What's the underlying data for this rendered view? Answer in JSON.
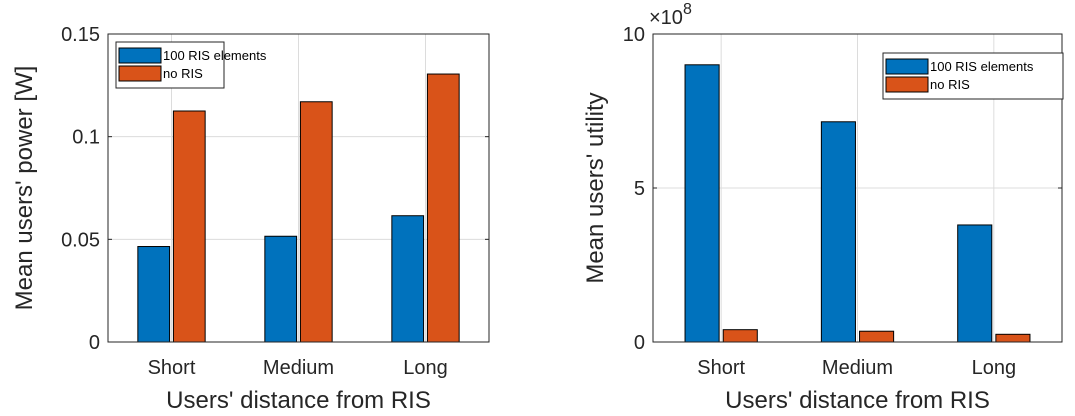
{
  "chart_data": [
    {
      "type": "bar",
      "categories": [
        "Short",
        "Medium",
        "Long"
      ],
      "series": [
        {
          "name": "100 RIS elements",
          "values": [
            0.0465,
            0.0515,
            0.0615
          ],
          "color": "#0072BD"
        },
        {
          "name": "no RIS",
          "values": [
            0.1125,
            0.117,
            0.1305
          ],
          "color": "#D95319"
        }
      ],
      "xlabel": "Users' distance from RIS",
      "ylabel": "Mean users' power [W]",
      "ylim": [
        0,
        0.15
      ],
      "yticks": [
        0,
        0.05,
        0.1,
        0.15
      ],
      "ytick_labels": [
        "0",
        "0.05",
        "0.1",
        "0.15"
      ],
      "grid": true,
      "legend_position": "top-left"
    },
    {
      "type": "bar",
      "categories": [
        "Short",
        "Medium",
        "Long"
      ],
      "series": [
        {
          "name": "100 RIS elements",
          "values": [
            900000000,
            715000000,
            380000000
          ],
          "color": "#0072BD"
        },
        {
          "name": "no RIS",
          "values": [
            40000000,
            35000000,
            25000000
          ],
          "color": "#D95319"
        }
      ],
      "xlabel": "Users' distance from RIS",
      "ylabel": "Mean users' utility",
      "ylim": [
        0,
        1000000000
      ],
      "yticks": [
        0,
        500000000,
        1000000000
      ],
      "ytick_labels": [
        "0",
        "5",
        "10"
      ],
      "exponent_label": "×10",
      "exponent_power": "8",
      "grid": true,
      "legend_position": "top-right"
    }
  ]
}
